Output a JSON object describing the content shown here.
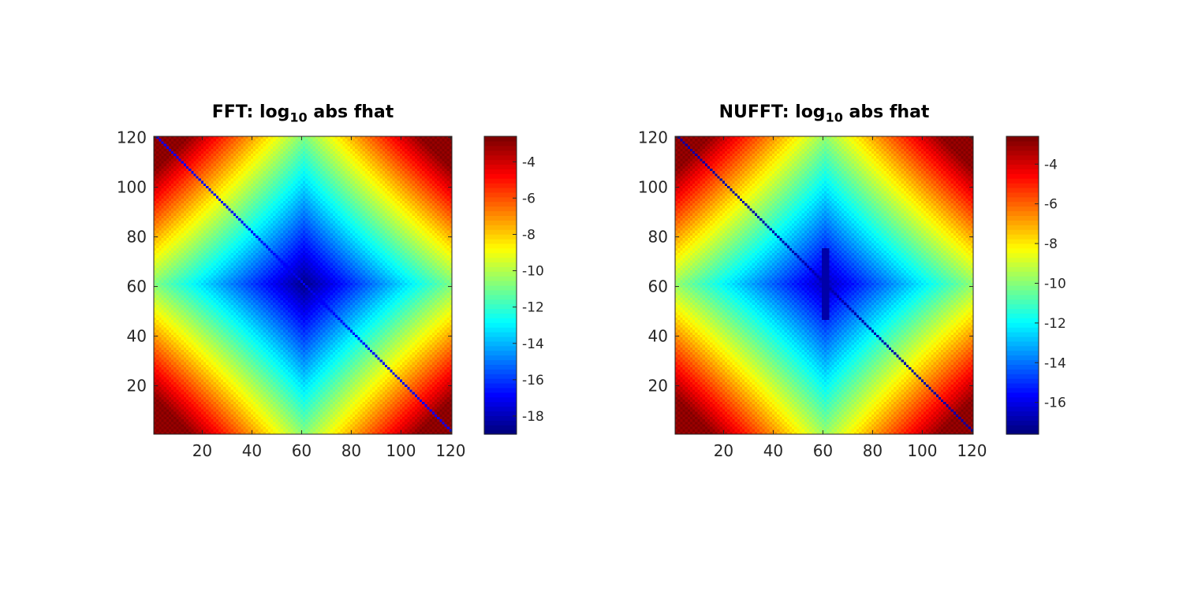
{
  "chart_data": [
    {
      "type": "heatmap",
      "title": {
        "prefix": "FFT: log",
        "subscript": "10",
        "suffix": " abs fhat"
      },
      "xlim": [
        1,
        120
      ],
      "ylim": [
        1,
        120
      ],
      "xticks": [
        20,
        40,
        60,
        80,
        100,
        120
      ],
      "yticks": [
        20,
        40,
        60,
        80,
        100,
        120
      ],
      "colormap": "jet",
      "clim": [
        -19,
        -2.6
      ],
      "colorbar_ticks": [
        -4,
        -6,
        -8,
        -10,
        -12,
        -14,
        -16,
        -18
      ],
      "grid_size": [
        120,
        120
      ],
      "center": [
        61,
        61
      ],
      "min_value": -19,
      "corner_value": -3,
      "anti_diagonal_value": -17,
      "dark_seam": false
    },
    {
      "type": "heatmap",
      "title": {
        "prefix": "NUFFT: log",
        "subscript": "10",
        "suffix": " abs fhat"
      },
      "xlim": [
        1,
        120
      ],
      "ylim": [
        1,
        120
      ],
      "xticks": [
        20,
        40,
        60,
        80,
        100,
        120
      ],
      "yticks": [
        20,
        40,
        60,
        80,
        100,
        120
      ],
      "colormap": "jet",
      "clim": [
        -17.6,
        -2.6
      ],
      "colorbar_ticks": [
        -4,
        -6,
        -8,
        -10,
        -12,
        -14,
        -16
      ],
      "grid_size": [
        120,
        120
      ],
      "center": [
        61,
        61
      ],
      "min_value": -17,
      "corner_value": -3,
      "anti_diagonal_value": -17,
      "dark_seam": true
    }
  ]
}
